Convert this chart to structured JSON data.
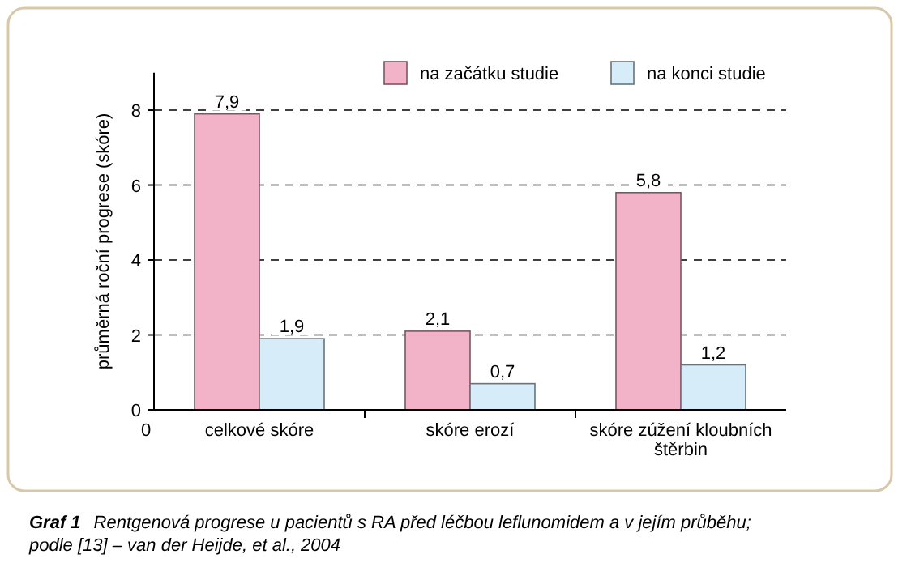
{
  "chart_data": {
    "type": "bar",
    "title": "Graf 1",
    "subtitle": "Rentgenová progrese u pacientů s RA před léčbou leflunomidem a v jejím průběhu; podle [13] – van der Heijde, et al., 2004",
    "ylabel": "průměrná roční progrese (skóre)",
    "categories": [
      "celkové skóre",
      "skóre erozí",
      "skóre zúžení kloubních štěrbin"
    ],
    "series": [
      {
        "name": "na začátku studie",
        "color": "#f2b3c8",
        "values": [
          7.9,
          2.1,
          5.8
        ],
        "value_labels": [
          "7,9",
          "2,1",
          "5,8"
        ]
      },
      {
        "name": "na konci studie",
        "color": "#d6ecf8",
        "values": [
          1.9,
          0.7,
          1.2
        ],
        "value_labels": [
          "1,9",
          "0,7",
          "1,2"
        ]
      }
    ],
    "ylim": [
      0,
      9
    ],
    "yticks": [
      0,
      2,
      4,
      6,
      8
    ],
    "grid": "y",
    "legend": "top right",
    "annotations": [
      "0"
    ]
  }
}
